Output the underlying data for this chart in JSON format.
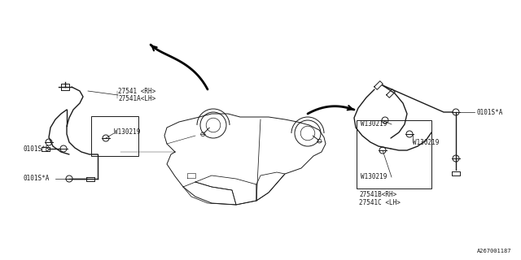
{
  "bg_color": "#ffffff",
  "line_color": "#1a1a1a",
  "diagram_id": "A267001187",
  "front_labels": {
    "part1": "27541 <RH>",
    "part2": "27541A<LH>",
    "clip": "W130219",
    "bolt_b": "0101S*B",
    "bolt_a": "0101S*A"
  },
  "rear_labels": {
    "part1": "27541B<RH>",
    "part2": "27541C <LH>",
    "clip1": "W130219",
    "clip2": "W130219",
    "clip3": "W130219",
    "bolt_a": "0101S*A"
  }
}
